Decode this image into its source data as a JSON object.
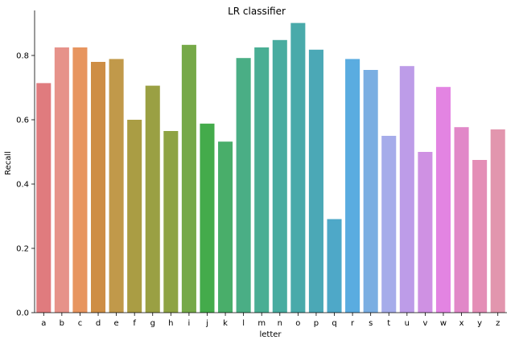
{
  "chart_data": {
    "type": "bar",
    "title": "LR classifier",
    "xlabel": "letter",
    "ylabel": "Recall",
    "ylim": [
      0,
      0.94
    ],
    "yticks": [
      "0.0",
      "0.2",
      "0.4",
      "0.6",
      "0.8"
    ],
    "ytick_values": [
      0.0,
      0.2,
      0.4,
      0.6,
      0.8
    ],
    "grid": false,
    "categories": [
      "a",
      "b",
      "c",
      "d",
      "e",
      "f",
      "g",
      "h",
      "i",
      "j",
      "k",
      "l",
      "m",
      "n",
      "o",
      "p",
      "q",
      "r",
      "s",
      "t",
      "u",
      "v",
      "w",
      "x",
      "y",
      "z"
    ],
    "values": [
      0.714,
      0.825,
      0.825,
      0.78,
      0.789,
      0.6,
      0.706,
      0.565,
      0.833,
      0.588,
      0.532,
      0.792,
      0.825,
      0.848,
      0.901,
      0.818,
      0.291,
      0.789,
      0.755,
      0.55,
      0.767,
      0.5,
      0.702,
      0.577,
      0.475,
      0.57
    ],
    "colors": [
      "#e07b7e",
      "#e6928a",
      "#e7955f",
      "#ce8e45",
      "#c1994a",
      "#aa9d44",
      "#9aa043",
      "#8ea343",
      "#76a948",
      "#44ab4b",
      "#49ae6a",
      "#4aae85",
      "#49ae94",
      "#48aca0",
      "#49aaaa",
      "#4ba8b6",
      "#4ea8c8",
      "#5aace0",
      "#7aaee2",
      "#a6acea",
      "#bd9ce8",
      "#cf91e3",
      "#e384e2",
      "#e188c8",
      "#e48eb6",
      "#e296ae"
    ]
  }
}
